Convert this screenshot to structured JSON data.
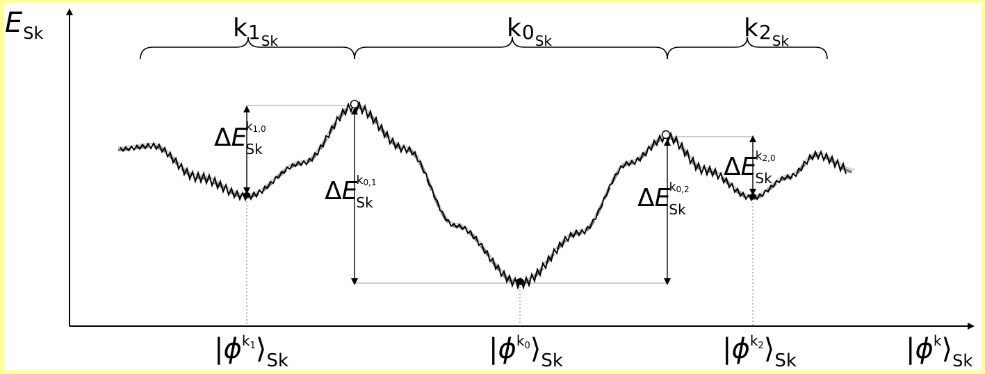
{
  "axes": {
    "y_label": {
      "main": "E",
      "sub": "Sk"
    },
    "x_label": {
      "bar": "|",
      "symbol": "ϕ",
      "superscript": "k",
      "bracket": "⟩",
      "sub": "Sk"
    }
  },
  "regions": [
    {
      "id": "k1",
      "main": "k",
      "index": "1",
      "sub": "Sk"
    },
    {
      "id": "k0",
      "main": "k",
      "index": "0",
      "sub": "Sk"
    },
    {
      "id": "k2",
      "main": "k",
      "index": "2",
      "sub": "Sk"
    }
  ],
  "energy_gaps": [
    {
      "id": "k10",
      "delta": "Δ",
      "main": "E",
      "sub": "Sk",
      "superscript": "k",
      "sup_index": "1,0"
    },
    {
      "id": "k01",
      "delta": "Δ",
      "main": "E",
      "sub": "Sk",
      "superscript": "k",
      "sup_index": "0,1"
    },
    {
      "id": "k02",
      "delta": "Δ",
      "main": "E",
      "sub": "Sk",
      "superscript": "k",
      "sup_index": "0,2"
    },
    {
      "id": "k20",
      "delta": "Δ",
      "main": "E",
      "sub": "Sk",
      "superscript": "k",
      "sup_index": "2,0"
    }
  ],
  "states": [
    {
      "id": "phi-k1",
      "bar": "|",
      "symbol": "ϕ",
      "superscript": "k",
      "sup_index": "1",
      "bracket": "⟩",
      "sub": "Sk"
    },
    {
      "id": "phi-k0",
      "bar": "|",
      "symbol": "ϕ",
      "superscript": "k",
      "sup_index": "0",
      "bracket": "⟩",
      "sub": "Sk"
    },
    {
      "id": "phi-k2",
      "bar": "|",
      "symbol": "ϕ",
      "superscript": "k",
      "sup_index": "2",
      "bracket": "⟩",
      "sub": "Sk"
    }
  ],
  "colors": {
    "frame": "#ffff99",
    "curve": "#000000",
    "dashed_curve": "#808080",
    "thin_curve": "#c8c8c8"
  }
}
